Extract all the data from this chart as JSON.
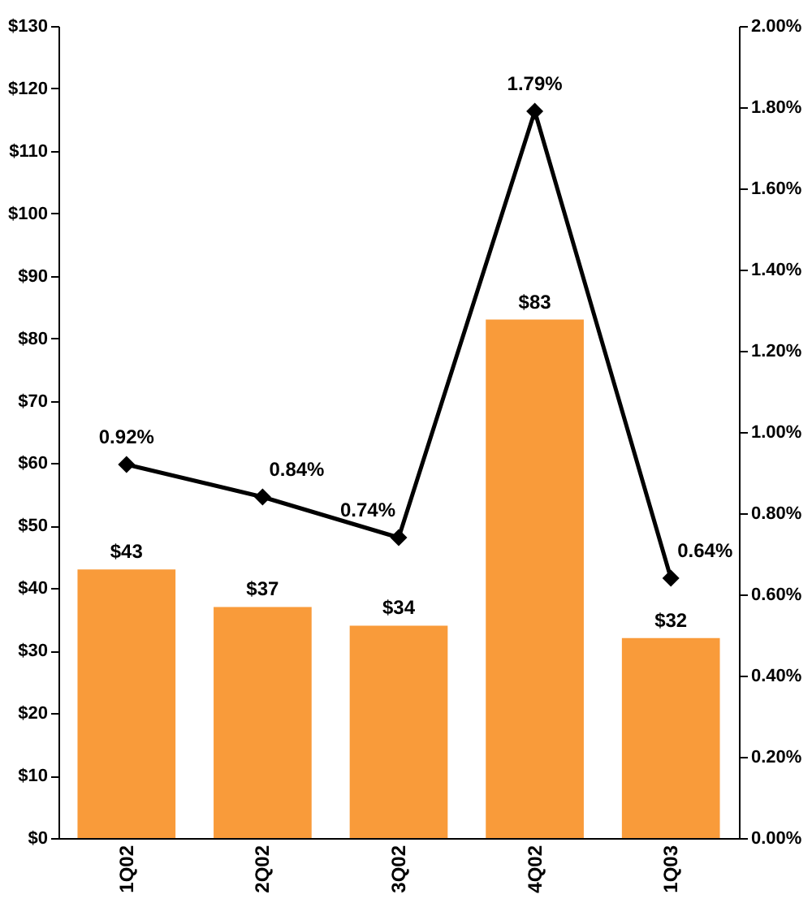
{
  "chart_data": {
    "type": "bar",
    "categories": [
      "1Q02",
      "2Q02",
      "3Q02",
      "4Q02",
      "1Q03"
    ],
    "series": [
      {
        "color": "#f99b3a",
        "values": [
          43,
          37,
          34,
          83,
          32
        ],
        "value_labels": [
          "$43",
          "$37",
          "$34",
          "$83",
          "$32"
        ]
      },
      {
        "type": "line",
        "axis": "y2",
        "color": "#000000",
        "values": [
          0.92,
          0.84,
          0.74,
          1.79,
          0.64
        ],
        "value_labels": [
          "0.92%",
          "0.84%",
          "0.74%",
          "1.79%",
          "0.64%"
        ]
      }
    ],
    "ylim": [
      0,
      130
    ],
    "yticks": [
      {
        "value": 0,
        "label": "$0"
      },
      {
        "value": 10,
        "label": "$10"
      },
      {
        "value": 20,
        "label": "$20"
      },
      {
        "value": 30,
        "label": "$30"
      },
      {
        "value": 40,
        "label": "$40"
      },
      {
        "value": 50,
        "label": "$50"
      },
      {
        "value": 60,
        "label": "$60"
      },
      {
        "value": 70,
        "label": "$70"
      },
      {
        "value": 80,
        "label": "$80"
      },
      {
        "value": 90,
        "label": "$90"
      },
      {
        "value": 100,
        "label": "$100"
      },
      {
        "value": 110,
        "label": "$110"
      },
      {
        "value": 120,
        "label": "$120"
      },
      {
        "value": 130,
        "label": "$130"
      }
    ],
    "y2lim": [
      0,
      2
    ],
    "y2ticks": [
      {
        "value": 0,
        "label": "0.00%"
      },
      {
        "value": 0.2,
        "label": "0.20%"
      },
      {
        "value": 0.4,
        "label": "0.40%"
      },
      {
        "value": 0.6,
        "label": "0.60%"
      },
      {
        "value": 0.8,
        "label": "0.80%"
      },
      {
        "value": 1,
        "label": "1.00%"
      },
      {
        "value": 1.2,
        "label": "1.20%"
      },
      {
        "value": 1.4,
        "label": "1.40%"
      },
      {
        "value": 1.6,
        "label": "1.60%"
      },
      {
        "value": 1.8,
        "label": "1.80%"
      },
      {
        "value": 2,
        "label": "2.00%"
      }
    ],
    "grid": false,
    "marker": "diamond",
    "line_style": "solid"
  }
}
